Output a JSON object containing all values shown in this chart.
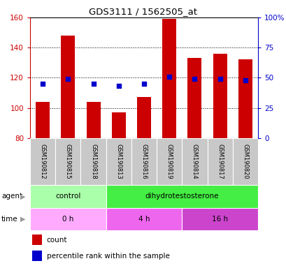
{
  "title": "GDS3111 / 1562505_at",
  "samples": [
    "GSM190812",
    "GSM190815",
    "GSM190818",
    "GSM190813",
    "GSM190816",
    "GSM190819",
    "GSM190814",
    "GSM190817",
    "GSM190820"
  ],
  "counts": [
    104,
    148,
    104,
    97,
    107,
    159,
    133,
    136,
    132
  ],
  "percentile_ranks": [
    45,
    49,
    45,
    43,
    45,
    51,
    49,
    49,
    48
  ],
  "ylim_left": [
    80,
    160
  ],
  "ylim_right": [
    0,
    100
  ],
  "yticks_left": [
    80,
    100,
    120,
    140,
    160
  ],
  "yticks_right": [
    0,
    25,
    50,
    75,
    100
  ],
  "ytick_labels_right": [
    "0",
    "25",
    "50",
    "75",
    "100%"
  ],
  "bar_color": "#cc0000",
  "dot_color": "#0000cc",
  "agent_groups": [
    {
      "label": "control",
      "start": 0,
      "end": 3,
      "color": "#aaffaa"
    },
    {
      "label": "dihydrotestosterone",
      "start": 3,
      "end": 9,
      "color": "#44ee44"
    }
  ],
  "time_colors": [
    "#ffaaff",
    "#ee66ee",
    "#cc44cc"
  ],
  "time_groups": [
    {
      "label": "0 h",
      "start": 0,
      "end": 3
    },
    {
      "label": "4 h",
      "start": 3,
      "end": 6
    },
    {
      "label": "16 h",
      "start": 6,
      "end": 9
    }
  ],
  "legend_items": [
    {
      "color": "#cc0000",
      "label": "count"
    },
    {
      "color": "#0000cc",
      "label": "percentile rank within the sample"
    }
  ],
  "sample_bg_color": "#c8c8c8",
  "left_axis_color": "#cc0000",
  "right_axis_color": "#0000cc"
}
